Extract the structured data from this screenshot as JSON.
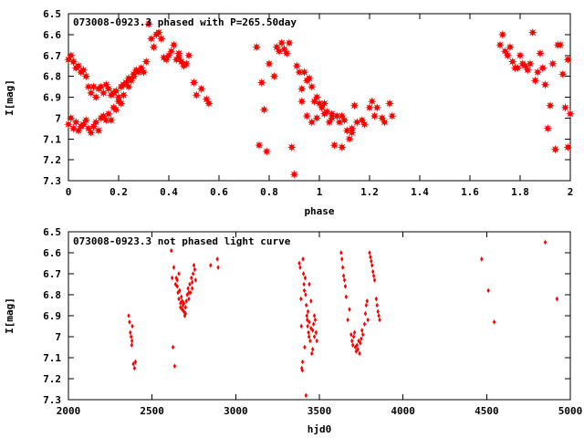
{
  "chart_data": [
    {
      "type": "scatter",
      "title": "073008-0923.3 phased with P=265.50day",
      "xlabel": "phase",
      "ylabel": "I[mag]",
      "xlim": [
        0,
        2
      ],
      "ylim": [
        6.5,
        7.3
      ],
      "y_inverted": true,
      "x_ticks": [
        "0",
        "0.2",
        "0.4",
        "0.6",
        "0.8",
        "1",
        "1.2",
        "1.4",
        "1.6",
        "1.8",
        "2"
      ],
      "x_tick_values": [
        0,
        0.2,
        0.4,
        0.6,
        0.8,
        1.0,
        1.2,
        1.4,
        1.6,
        1.8,
        2.0
      ],
      "y_ticks": [
        "6.5",
        "6.6",
        "6.7",
        "6.8",
        "6.9",
        "7",
        "7.1",
        "7.2",
        "7.3"
      ],
      "y_tick_values": [
        6.5,
        6.6,
        6.7,
        6.8,
        6.9,
        7.0,
        7.1,
        7.2,
        7.3
      ],
      "marker_color": "#ff0000",
      "marker": "star",
      "grid": false,
      "points": [
        [
          0.0,
          6.72
        ],
        [
          0.01,
          6.7
        ],
        [
          0.02,
          6.73
        ],
        [
          0.03,
          6.76
        ],
        [
          0.04,
          6.75
        ],
        [
          0.05,
          6.78
        ],
        [
          0.06,
          6.77
        ],
        [
          0.07,
          6.8
        ],
        [
          0.08,
          6.85
        ],
        [
          0.09,
          6.88
        ],
        [
          0.1,
          6.85
        ],
        [
          0.11,
          6.9
        ],
        [
          0.12,
          6.86
        ],
        [
          0.13,
          6.85
        ],
        [
          0.14,
          6.88
        ],
        [
          0.15,
          6.84
        ],
        [
          0.16,
          6.86
        ],
        [
          0.17,
          6.89
        ],
        [
          0.18,
          6.88
        ],
        [
          0.19,
          6.87
        ],
        [
          0.2,
          6.92
        ],
        [
          0.21,
          6.85
        ],
        [
          0.22,
          6.84
        ],
        [
          0.23,
          6.83
        ],
        [
          0.24,
          6.81
        ],
        [
          0.25,
          6.82
        ],
        [
          0.26,
          6.79
        ],
        [
          0.27,
          6.77
        ],
        [
          0.28,
          6.78
        ],
        [
          0.29,
          6.76
        ],
        [
          0.3,
          6.78
        ],
        [
          0.31,
          6.73
        ],
        [
          0.32,
          6.55
        ],
        [
          0.33,
          6.62
        ],
        [
          0.34,
          6.66
        ],
        [
          0.35,
          6.6
        ],
        [
          0.36,
          6.59
        ],
        [
          0.37,
          6.62
        ],
        [
          0.38,
          6.71
        ],
        [
          0.39,
          6.72
        ],
        [
          0.4,
          6.7
        ],
        [
          0.41,
          6.68
        ],
        [
          0.42,
          6.65
        ],
        [
          0.43,
          6.72
        ],
        [
          0.44,
          6.69
        ],
        [
          0.45,
          6.73
        ],
        [
          0.46,
          6.75
        ],
        [
          0.47,
          6.74
        ],
        [
          0.5,
          6.83
        ],
        [
          0.51,
          6.89
        ],
        [
          0.53,
          6.86
        ],
        [
          0.55,
          6.91
        ],
        [
          0.56,
          6.93
        ],
        [
          0.0,
          7.03
        ],
        [
          0.01,
          7.0
        ],
        [
          0.02,
          7.05
        ],
        [
          0.03,
          7.02
        ],
        [
          0.04,
          7.06
        ],
        [
          0.05,
          7.04
        ],
        [
          0.06,
          7.03
        ],
        [
          0.07,
          7.01
        ],
        [
          0.08,
          7.05
        ],
        [
          0.09,
          7.07
        ],
        [
          0.1,
          7.04
        ],
        [
          0.11,
          7.02
        ],
        [
          0.12,
          7.06
        ],
        [
          0.13,
          7.0
        ],
        [
          0.14,
          6.99
        ],
        [
          0.15,
          7.01
        ],
        [
          0.16,
          6.98
        ],
        [
          0.17,
          7.01
        ],
        [
          0.18,
          6.95
        ],
        [
          0.19,
          6.96
        ],
        [
          0.2,
          6.9
        ],
        [
          0.21,
          6.93
        ],
        [
          0.22,
          6.89
        ],
        [
          0.24,
          6.85
        ],
        [
          0.26,
          6.8
        ],
        [
          0.44,
          6.71
        ],
        [
          0.48,
          6.7
        ],
        [
          0.75,
          6.66
        ],
        [
          0.76,
          7.13
        ],
        [
          0.77,
          6.83
        ],
        [
          0.78,
          6.96
        ],
        [
          0.79,
          7.16
        ],
        [
          0.8,
          6.74
        ],
        [
          0.82,
          6.8
        ],
        [
          0.83,
          6.66
        ],
        [
          0.84,
          6.68
        ],
        [
          0.85,
          6.64
        ],
        [
          0.86,
          6.67
        ],
        [
          0.87,
          6.69
        ],
        [
          0.88,
          6.64
        ],
        [
          0.89,
          7.14
        ],
        [
          0.9,
          7.27
        ],
        [
          0.91,
          6.75
        ],
        [
          0.92,
          6.78
        ],
        [
          0.93,
          6.86
        ],
        [
          0.94,
          6.78
        ],
        [
          0.95,
          6.82
        ],
        [
          0.96,
          6.81
        ],
        [
          0.97,
          6.85
        ],
        [
          0.98,
          6.92
        ],
        [
          0.99,
          6.9
        ],
        [
          1.0,
          6.93
        ],
        [
          1.01,
          6.95
        ],
        [
          1.02,
          6.98
        ],
        [
          1.03,
          6.97
        ],
        [
          1.04,
          7.02
        ],
        [
          1.05,
          7.0
        ],
        [
          1.06,
          7.13
        ],
        [
          1.07,
          6.99
        ],
        [
          1.08,
          7.02
        ],
        [
          1.09,
          6.99
        ],
        [
          1.1,
          7.01
        ],
        [
          1.11,
          7.06
        ],
        [
          1.12,
          7.1
        ],
        [
          1.13,
          7.05
        ],
        [
          1.14,
          6.94
        ],
        [
          1.15,
          7.02
        ],
        [
          1.17,
          7.01
        ],
        [
          1.18,
          7.03
        ],
        [
          1.2,
          6.95
        ],
        [
          1.21,
          6.92
        ],
        [
          1.22,
          6.99
        ],
        [
          1.23,
          6.95
        ],
        [
          1.25,
          7.0
        ],
        [
          1.26,
          7.02
        ],
        [
          1.28,
          6.93
        ],
        [
          1.29,
          6.99
        ],
        [
          0.93,
          6.92
        ],
        [
          0.95,
          6.99
        ],
        [
          0.97,
          7.02
        ],
        [
          0.99,
          7.0
        ],
        [
          1.02,
          6.93
        ],
        [
          1.05,
          6.98
        ],
        [
          1.09,
          7.14
        ],
        [
          1.13,
          7.07
        ],
        [
          1.72,
          6.65
        ],
        [
          1.73,
          6.6
        ],
        [
          1.74,
          6.68
        ],
        [
          1.75,
          6.7
        ],
        [
          1.76,
          6.66
        ],
        [
          1.77,
          6.73
        ],
        [
          1.78,
          6.76
        ],
        [
          1.79,
          6.76
        ],
        [
          1.8,
          6.7
        ],
        [
          1.81,
          6.74
        ],
        [
          1.82,
          6.75
        ],
        [
          1.83,
          6.77
        ],
        [
          1.84,
          6.74
        ],
        [
          1.85,
          6.59
        ],
        [
          1.86,
          6.82
        ],
        [
          1.87,
          6.78
        ],
        [
          1.88,
          6.69
        ],
        [
          1.89,
          6.76
        ],
        [
          1.9,
          6.84
        ],
        [
          1.91,
          7.05
        ],
        [
          1.92,
          6.94
        ],
        [
          1.93,
          6.74
        ],
        [
          1.94,
          7.15
        ],
        [
          1.95,
          6.65
        ],
        [
          1.96,
          6.65
        ],
        [
          1.97,
          6.79
        ],
        [
          1.98,
          6.95
        ],
        [
          1.99,
          6.72
        ],
        [
          1.99,
          7.14
        ],
        [
          2.0,
          6.98
        ]
      ]
    },
    {
      "type": "scatter",
      "title": "073008-0923.3 not phased light curve",
      "xlabel": "hjd0",
      "ylabel": "I[mag]",
      "xlim": [
        2000,
        5000
      ],
      "ylim": [
        6.5,
        7.3
      ],
      "y_inverted": true,
      "x_ticks": [
        "2000",
        "2500",
        "3000",
        "3500",
        "4000",
        "4500",
        "5000"
      ],
      "x_tick_values": [
        2000,
        2500,
        3000,
        3500,
        4000,
        4500,
        5000
      ],
      "y_ticks": [
        "6.5",
        "6.6",
        "6.7",
        "6.8",
        "6.9",
        "7",
        "7.1",
        "7.2",
        "7.3"
      ],
      "y_tick_values": [
        6.5,
        6.6,
        6.7,
        6.8,
        6.9,
        7.0,
        7.1,
        7.2,
        7.3
      ],
      "marker_color": "#ff0000",
      "marker": "diamond",
      "grid": false,
      "points": [
        [
          2360,
          6.9
        ],
        [
          2365,
          6.93
        ],
        [
          2370,
          6.98
        ],
        [
          2375,
          7.0
        ],
        [
          2378,
          7.04
        ],
        [
          2382,
          6.95
        ],
        [
          2388,
          7.13
        ],
        [
          2395,
          7.15
        ],
        [
          2400,
          7.12
        ],
        [
          2380,
          7.02
        ],
        [
          2615,
          6.59
        ],
        [
          2620,
          6.72
        ],
        [
          2625,
          7.05
        ],
        [
          2630,
          6.67
        ],
        [
          2635,
          7.14
        ],
        [
          2640,
          6.75
        ],
        [
          2645,
          6.72
        ],
        [
          2650,
          6.76
        ],
        [
          2655,
          6.79
        ],
        [
          2660,
          6.82
        ],
        [
          2665,
          6.78
        ],
        [
          2670,
          6.84
        ],
        [
          2675,
          6.81
        ],
        [
          2680,
          6.87
        ],
        [
          2685,
          6.85
        ],
        [
          2690,
          6.88
        ],
        [
          2695,
          6.9
        ],
        [
          2700,
          6.86
        ],
        [
          2705,
          6.83
        ],
        [
          2710,
          6.8
        ],
        [
          2715,
          6.77
        ],
        [
          2720,
          6.82
        ],
        [
          2725,
          6.75
        ],
        [
          2730,
          6.79
        ],
        [
          2735,
          6.72
        ],
        [
          2740,
          6.77
        ],
        [
          2745,
          6.7
        ],
        [
          2750,
          6.66
        ],
        [
          2755,
          6.68
        ],
        [
          2760,
          6.73
        ],
        [
          2650,
          6.73
        ],
        [
          2660,
          6.7
        ],
        [
          2670,
          6.86
        ],
        [
          2680,
          6.83
        ],
        [
          2690,
          6.84
        ],
        [
          2700,
          6.89
        ],
        [
          2720,
          6.79
        ],
        [
          2740,
          6.74
        ],
        [
          2850,
          6.66
        ],
        [
          2890,
          6.63
        ],
        [
          2895,
          6.67
        ],
        [
          3380,
          6.65
        ],
        [
          3385,
          6.67
        ],
        [
          3390,
          6.82
        ],
        [
          3392,
          6.95
        ],
        [
          3395,
          7.15
        ],
        [
          3398,
          7.16
        ],
        [
          3400,
          7.12
        ],
        [
          3402,
          6.63
        ],
        [
          3405,
          6.7
        ],
        [
          3408,
          6.75
        ],
        [
          3410,
          6.78
        ],
        [
          3412,
          7.05
        ],
        [
          3415,
          6.72
        ],
        [
          3418,
          6.8
        ],
        [
          3420,
          7.28
        ],
        [
          3422,
          6.85
        ],
        [
          3425,
          6.9
        ],
        [
          3428,
          6.92
        ],
        [
          3430,
          6.95
        ],
        [
          3432,
          6.88
        ],
        [
          3435,
          6.98
        ],
        [
          3438,
          7.0
        ],
        [
          3440,
          6.93
        ],
        [
          3445,
          7.02
        ],
        [
          3450,
          6.96
        ],
        [
          3455,
          7.08
        ],
        [
          3460,
          7.06
        ],
        [
          3465,
          6.94
        ],
        [
          3470,
          7.0
        ],
        [
          3475,
          6.92
        ],
        [
          3480,
          6.98
        ],
        [
          3485,
          7.02
        ],
        [
          3440,
          6.75
        ],
        [
          3450,
          6.83
        ],
        [
          3460,
          6.97
        ],
        [
          3470,
          6.9
        ],
        [
          3630,
          6.6
        ],
        [
          3635,
          6.63
        ],
        [
          3640,
          6.67
        ],
        [
          3645,
          6.71
        ],
        [
          3650,
          6.73
        ],
        [
          3655,
          6.76
        ],
        [
          3660,
          6.81
        ],
        [
          3670,
          6.92
        ],
        [
          3680,
          6.87
        ],
        [
          3690,
          6.99
        ],
        [
          3695,
          7.02
        ],
        [
          3700,
          7.04
        ],
        [
          3705,
          7.0
        ],
        [
          3710,
          6.98
        ],
        [
          3715,
          7.05
        ],
        [
          3720,
          7.07
        ],
        [
          3725,
          7.04
        ],
        [
          3730,
          7.06
        ],
        [
          3735,
          7.02
        ],
        [
          3740,
          7.08
        ],
        [
          3745,
          7.03
        ],
        [
          3750,
          7.01
        ],
        [
          3755,
          6.97
        ],
        [
          3760,
          6.99
        ],
        [
          3770,
          6.94
        ],
        [
          3775,
          6.89
        ],
        [
          3780,
          6.85
        ],
        [
          3785,
          6.83
        ],
        [
          3790,
          6.92
        ],
        [
          3800,
          6.6
        ],
        [
          3805,
          6.62
        ],
        [
          3810,
          6.64
        ],
        [
          3815,
          6.66
        ],
        [
          3820,
          6.69
        ],
        [
          3825,
          6.71
        ],
        [
          3830,
          6.73
        ],
        [
          3840,
          6.82
        ],
        [
          3845,
          6.85
        ],
        [
          3850,
          6.88
        ],
        [
          3855,
          6.9
        ],
        [
          3860,
          6.92
        ],
        [
          4470,
          6.63
        ],
        [
          4510,
          6.78
        ],
        [
          4545,
          6.93
        ],
        [
          4850,
          6.55
        ],
        [
          4920,
          6.82
        ]
      ]
    }
  ]
}
